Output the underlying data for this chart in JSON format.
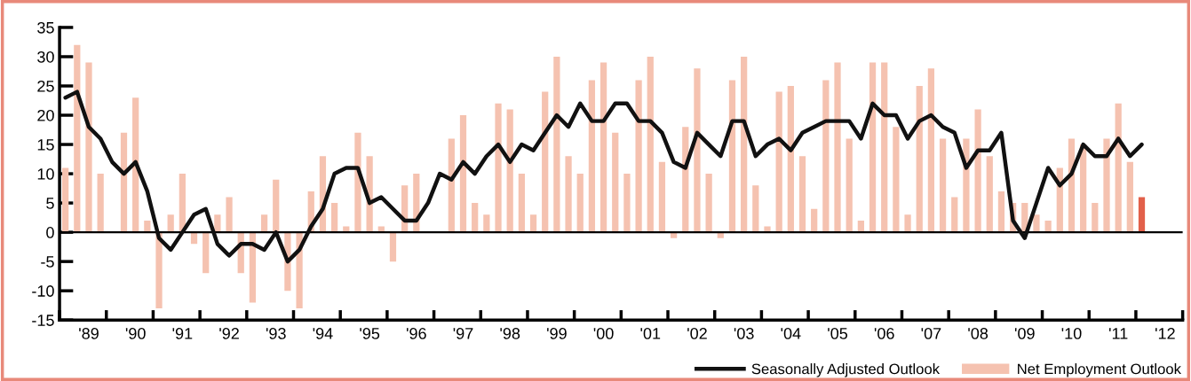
{
  "chart_data": {
    "type": "bar",
    "categories": [
      null,
      null,
      "'89",
      null,
      null,
      null,
      "'90",
      null,
      null,
      null,
      "'91",
      null,
      null,
      null,
      "'92",
      null,
      null,
      null,
      "'93",
      null,
      null,
      null,
      "'94",
      null,
      null,
      null,
      "'95",
      null,
      null,
      null,
      "'96",
      null,
      null,
      null,
      "'97",
      null,
      null,
      null,
      "'98",
      null,
      null,
      null,
      "'99",
      null,
      null,
      null,
      "'00",
      null,
      null,
      null,
      "'01",
      null,
      null,
      null,
      "'02",
      null,
      null,
      null,
      "'03",
      null,
      null,
      null,
      "'04",
      null,
      null,
      null,
      "'05",
      null,
      null,
      null,
      "'06",
      null,
      null,
      null,
      "'07",
      null,
      null,
      null,
      "'08",
      null,
      null,
      null,
      "'09",
      null,
      null,
      null,
      "'10",
      null,
      null,
      null,
      "'11",
      null,
      null,
      null,
      "'12",
      null
    ],
    "series": [
      {
        "name": "Net Employment Outlook",
        "color": "#f5c2b0",
        "colors": [
          "#f5c2b0",
          "#f5c2b0",
          "#f5c2b0",
          "#f5c2b0",
          "#f5c2b0",
          "#f5c2b0",
          "#f5c2b0",
          "#f5c2b0",
          "#f5c2b0",
          "#f5c2b0",
          "#f5c2b0",
          "#f5c2b0",
          "#f5c2b0",
          "#f5c2b0",
          "#f5c2b0",
          "#f5c2b0",
          "#f5c2b0",
          "#f5c2b0",
          "#f5c2b0",
          "#f5c2b0",
          "#f5c2b0",
          "#f5c2b0",
          "#f5c2b0",
          "#f5c2b0",
          "#f5c2b0",
          "#f5c2b0",
          "#f5c2b0",
          "#f5c2b0",
          "#f5c2b0",
          "#f5c2b0",
          "#f5c2b0",
          "#f5c2b0",
          "#f5c2b0",
          "#f5c2b0",
          "#f5c2b0",
          "#f5c2b0",
          "#f5c2b0",
          "#f5c2b0",
          "#f5c2b0",
          "#f5c2b0",
          "#f5c2b0",
          "#f5c2b0",
          "#f5c2b0",
          "#f5c2b0",
          "#f5c2b0",
          "#f5c2b0",
          "#f5c2b0",
          "#f5c2b0",
          "#f5c2b0",
          "#f5c2b0",
          "#f5c2b0",
          "#f5c2b0",
          "#f5c2b0",
          "#f5c2b0",
          "#f5c2b0",
          "#f5c2b0",
          "#f5c2b0",
          "#f5c2b0",
          "#f5c2b0",
          "#f5c2b0",
          "#f5c2b0",
          "#f5c2b0",
          "#f5c2b0",
          "#f5c2b0",
          "#f5c2b0",
          "#f5c2b0",
          "#f5c2b0",
          "#f5c2b0",
          "#f5c2b0",
          "#f5c2b0",
          "#f5c2b0",
          "#f5c2b0",
          "#f5c2b0",
          "#f5c2b0",
          "#f5c2b0",
          "#f5c2b0",
          "#f5c2b0",
          "#f5c2b0",
          "#f5c2b0",
          "#f5c2b0",
          "#f5c2b0",
          "#f5c2b0",
          "#f5c2b0",
          "#f5c2b0",
          "#f5c2b0",
          "#f5c2b0",
          "#f5c2b0",
          "#f5c2b0",
          "#f5c2b0",
          "#f5c2b0",
          "#f5c2b0",
          "#f5c2b0",
          "#e2604a",
          null,
          null,
          null
        ],
        "values": [
          11,
          32,
          29,
          10,
          null,
          17,
          23,
          2,
          -13,
          3,
          10,
          -2,
          -7,
          3,
          6,
          -7,
          -12,
          3,
          9,
          -10,
          -13,
          7,
          13,
          5,
          1,
          17,
          13,
          1,
          -5,
          8,
          10,
          null,
          null,
          16,
          20,
          5,
          3,
          22,
          21,
          10,
          3,
          24,
          30,
          13,
          10,
          26,
          29,
          17,
          10,
          26,
          30,
          12,
          -1,
          18,
          28,
          10,
          -1,
          26,
          30,
          8,
          1,
          24,
          25,
          13,
          4,
          26,
          29,
          16,
          2,
          29,
          29,
          18,
          3,
          25,
          28,
          16,
          6,
          16,
          21,
          13,
          7,
          5,
          5,
          3,
          2,
          11,
          16,
          15,
          5,
          16,
          22,
          12,
          6,
          null,
          null,
          null
        ]
      },
      {
        "name": "Seasonally Adjusted Outlook",
        "type": "line",
        "color": "#111111",
        "values": [
          23,
          24,
          18,
          16,
          12,
          10,
          12,
          7,
          -1,
          -3,
          0,
          3,
          4,
          -2,
          -4,
          -2,
          -2,
          -3,
          0,
          -5,
          -3,
          1,
          4,
          10,
          11,
          11,
          5,
          6,
          4,
          2,
          2,
          5,
          10,
          9,
          12,
          10,
          13,
          15,
          12,
          15,
          14,
          17,
          20,
          18,
          22,
          19,
          19,
          22,
          22,
          19,
          19,
          17,
          12,
          11,
          17,
          15,
          13,
          19,
          19,
          13,
          15,
          16,
          14,
          17,
          18,
          19,
          19,
          19,
          16,
          22,
          20,
          20,
          16,
          19,
          20,
          18,
          17,
          11,
          14,
          14,
          17,
          2,
          -1,
          5,
          11,
          8,
          10,
          15,
          13,
          13,
          16,
          13,
          15,
          null,
          null,
          null
        ]
      }
    ],
    "ylim": [
      -15,
      35
    ],
    "yticks": [
      -15,
      -10,
      -5,
      0,
      5,
      10,
      15,
      20,
      25,
      30,
      35
    ],
    "ref_lines": [
      {
        "axis": "y",
        "value": 0,
        "color": "#000000"
      }
    ],
    "grid": false,
    "legend": "bottom right"
  }
}
